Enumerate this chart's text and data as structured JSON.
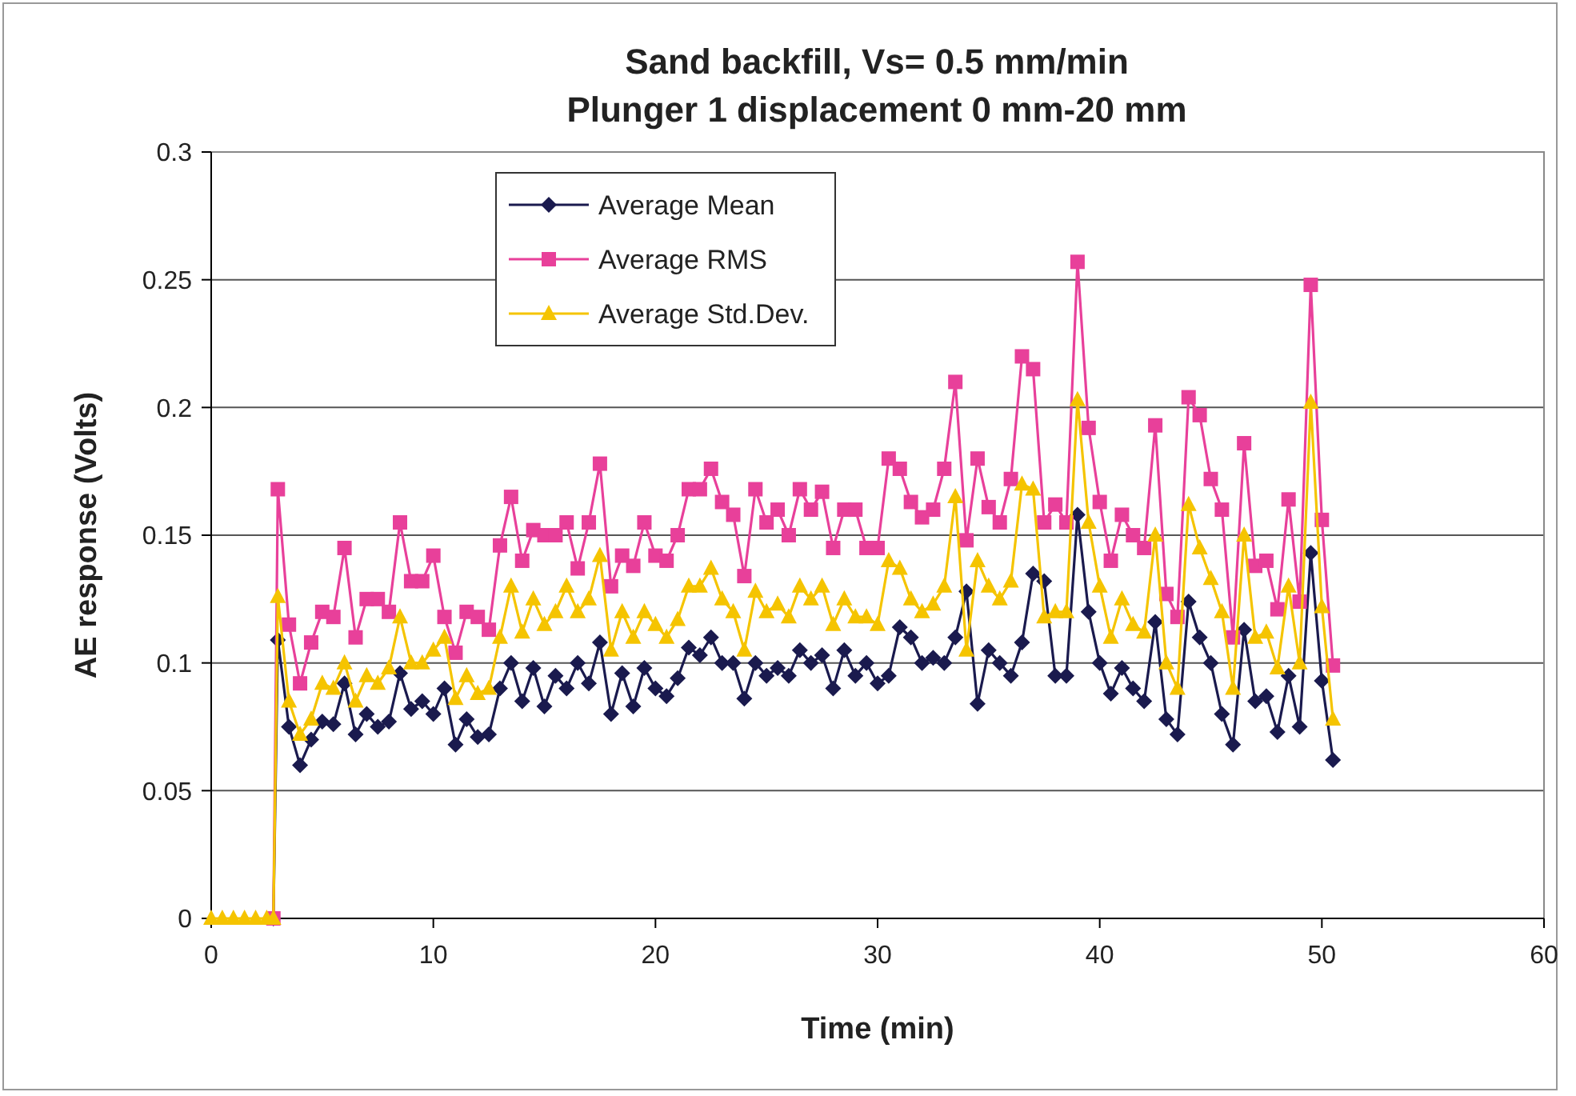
{
  "chart_data": {
    "type": "line",
    "title": "Sand backfill, Vs= 0.5 mm/min",
    "subtitle": "Plunger 1 displacement 0 mm-20 mm",
    "xlabel": "Time (min)",
    "ylabel": "AE response (Volts)",
    "x": [
      0,
      0.5,
      1,
      1.5,
      2,
      2.5,
      2.8,
      3,
      3.5,
      4,
      4.5,
      5,
      5.5,
      6,
      6.5,
      7,
      7.5,
      8,
      8.5,
      9,
      9.5,
      10,
      10.5,
      11,
      11.5,
      12,
      12.5,
      13,
      13.5,
      14,
      14.5,
      15,
      15.5,
      16,
      16.5,
      17,
      17.5,
      18,
      18.5,
      19,
      19.5,
      20,
      20.5,
      21,
      21.5,
      22,
      22.5,
      23,
      23.5,
      24,
      24.5,
      25,
      25.5,
      26,
      26.5,
      27,
      27.5,
      28,
      28.5,
      29,
      29.5,
      30,
      30.5,
      31,
      31.5,
      32,
      32.5,
      33,
      33.5,
      34,
      34.5,
      35,
      35.5,
      36,
      36.5,
      37,
      37.5,
      38,
      38.5,
      39,
      39.5,
      40,
      40.5,
      41,
      41.5,
      42,
      42.5,
      43,
      43.5,
      44,
      44.5,
      45,
      45.5,
      46,
      46.5,
      47,
      47.5,
      48,
      48.5,
      49,
      49.5,
      50,
      50.5
    ],
    "series": [
      {
        "name": "Average Mean",
        "color": "#1a1a4e",
        "marker": "diamond",
        "values": [
          null,
          null,
          null,
          null,
          null,
          null,
          0,
          0.109,
          0.075,
          0.06,
          0.07,
          0.077,
          0.076,
          0.092,
          0.072,
          0.08,
          0.075,
          0.077,
          0.096,
          0.082,
          0.085,
          0.08,
          0.09,
          0.068,
          0.078,
          0.071,
          0.072,
          0.09,
          0.1,
          0.085,
          0.098,
          0.083,
          0.095,
          0.09,
          0.1,
          0.092,
          0.108,
          0.08,
          0.096,
          0.083,
          0.098,
          0.09,
          0.087,
          0.094,
          0.106,
          0.103,
          0.11,
          0.1,
          0.1,
          0.086,
          0.1,
          0.095,
          0.098,
          0.095,
          0.105,
          0.1,
          0.103,
          0.09,
          0.105,
          0.095,
          0.1,
          0.092,
          0.095,
          0.114,
          0.11,
          0.1,
          0.102,
          0.1,
          0.11,
          0.128,
          0.084,
          0.105,
          0.1,
          0.095,
          0.108,
          0.135,
          0.132,
          0.095,
          0.095,
          0.158,
          0.12,
          0.1,
          0.088,
          0.098,
          0.09,
          0.085,
          0.116,
          0.078,
          0.072,
          0.124,
          0.11,
          0.1,
          0.08,
          0.068,
          0.113,
          0.085,
          0.087,
          0.073,
          0.095,
          0.075,
          0.143,
          0.093,
          0.062
        ]
      },
      {
        "name": "Average RMS",
        "color": "#e8409a",
        "marker": "square",
        "values": [
          null,
          null,
          null,
          null,
          null,
          null,
          0,
          0.168,
          0.115,
          0.092,
          0.108,
          0.12,
          0.118,
          0.145,
          0.11,
          0.125,
          0.125,
          0.12,
          0.155,
          0.132,
          0.132,
          0.142,
          0.118,
          0.104,
          0.12,
          0.118,
          0.113,
          0.146,
          0.165,
          0.14,
          0.152,
          0.15,
          0.15,
          0.155,
          0.137,
          0.155,
          0.178,
          0.13,
          0.142,
          0.138,
          0.155,
          0.142,
          0.14,
          0.15,
          0.168,
          0.168,
          0.176,
          0.163,
          0.158,
          0.134,
          0.168,
          0.155,
          0.16,
          0.15,
          0.168,
          0.16,
          0.167,
          0.145,
          0.16,
          0.16,
          0.145,
          0.145,
          0.18,
          0.176,
          0.163,
          0.157,
          0.16,
          0.176,
          0.21,
          0.148,
          0.18,
          0.161,
          0.155,
          0.172,
          0.22,
          0.215,
          0.155,
          0.162,
          0.155,
          0.257,
          0.192,
          0.163,
          0.14,
          0.158,
          0.15,
          0.145,
          0.193,
          0.127,
          0.118,
          0.204,
          0.197,
          0.172,
          0.16,
          0.11,
          0.186,
          0.138,
          0.14,
          0.121,
          0.164,
          0.124,
          0.248,
          0.156,
          0.099
        ]
      },
      {
        "name": "Average Std.Dev.",
        "color": "#f5c400",
        "marker": "triangle",
        "values": [
          0,
          0,
          0,
          0,
          0,
          0,
          0,
          0.126,
          0.085,
          0.072,
          0.078,
          0.092,
          0.09,
          0.1,
          0.085,
          0.095,
          0.092,
          0.098,
          0.118,
          0.1,
          0.1,
          0.105,
          0.11,
          0.086,
          0.095,
          0.088,
          0.09,
          0.11,
          0.13,
          0.112,
          0.125,
          0.115,
          0.12,
          0.13,
          0.12,
          0.125,
          0.142,
          0.105,
          0.12,
          0.11,
          0.12,
          0.115,
          0.11,
          0.117,
          0.13,
          0.13,
          0.137,
          0.125,
          0.12,
          0.105,
          0.128,
          0.12,
          0.123,
          0.118,
          0.13,
          0.125,
          0.13,
          0.115,
          0.125,
          0.118,
          0.118,
          0.115,
          0.14,
          0.137,
          0.125,
          0.12,
          0.123,
          0.13,
          0.165,
          0.105,
          0.14,
          0.13,
          0.125,
          0.132,
          0.17,
          0.168,
          0.118,
          0.12,
          0.12,
          0.203,
          0.155,
          0.13,
          0.11,
          0.125,
          0.115,
          0.112,
          0.15,
          0.1,
          0.09,
          0.162,
          0.145,
          0.133,
          0.12,
          0.09,
          0.15,
          0.11,
          0.112,
          0.098,
          0.13,
          0.1,
          0.202,
          0.122,
          0.078
        ]
      }
    ],
    "xlim": [
      0,
      60
    ],
    "xticks": [
      0,
      10,
      20,
      30,
      40,
      50,
      60
    ],
    "ylim": [
      0,
      0.3
    ],
    "yticks": [
      0,
      0.05,
      0.1,
      0.15,
      0.2,
      0.25,
      0.3
    ],
    "grid": "y",
    "legend": "top",
    "line_style": "solid"
  }
}
